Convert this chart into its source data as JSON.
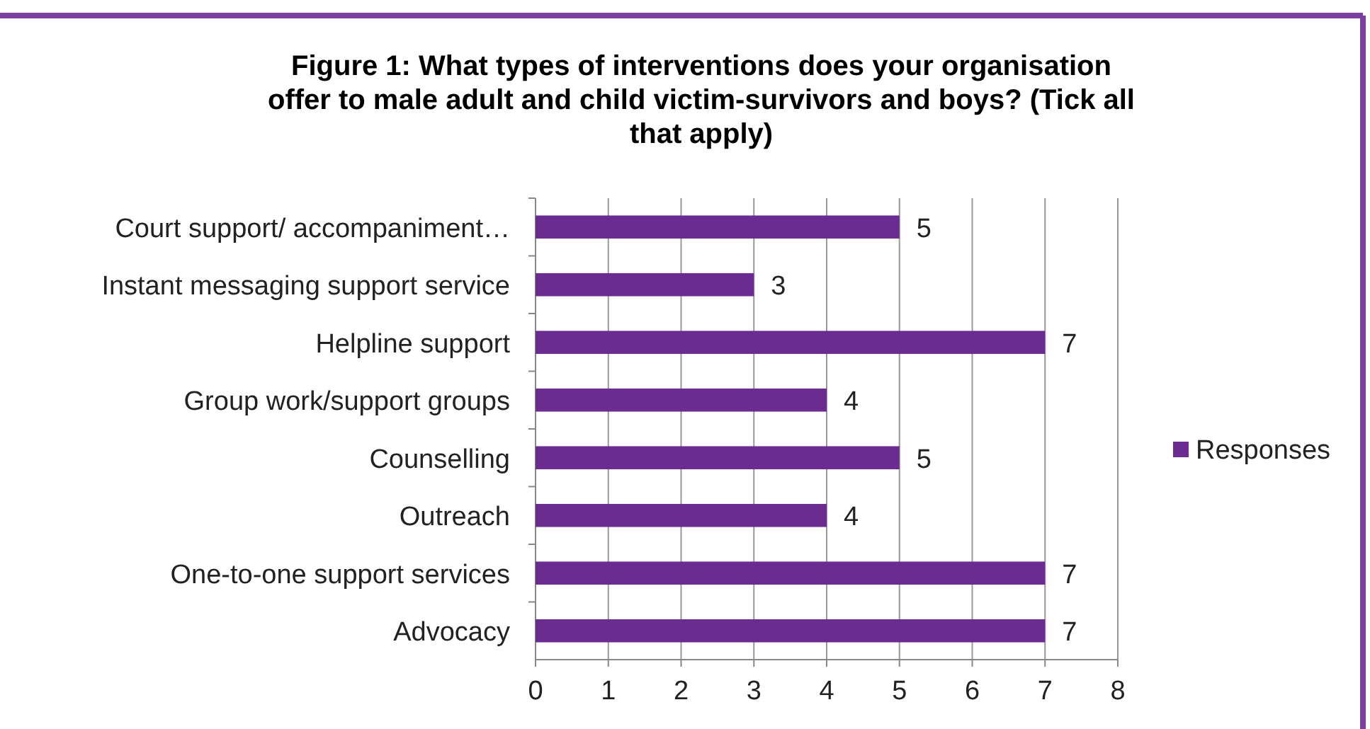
{
  "chart_data": {
    "type": "bar",
    "orientation": "horizontal",
    "title": "Figure 1: What types of interventions does your organisation\noffer to male adult and child victim-survivors and boys? (Tick all\nthat apply)",
    "categories": [
      "Court support/ accompaniment…",
      "Instant messaging support service",
      "Helpline support",
      "Group work/support groups",
      "Counselling",
      "Outreach",
      "One-to-one support services",
      "Advocacy"
    ],
    "series": [
      {
        "name": "Responses",
        "color": "#6a2c91",
        "values": [
          5,
          3,
          7,
          4,
          5,
          4,
          7,
          7
        ]
      }
    ],
    "xlim": [
      0,
      8
    ],
    "xticks": [
      0,
      1,
      2,
      3,
      4,
      5,
      6,
      7,
      8
    ],
    "grid": "x",
    "legend": "right",
    "data_labels": true
  }
}
